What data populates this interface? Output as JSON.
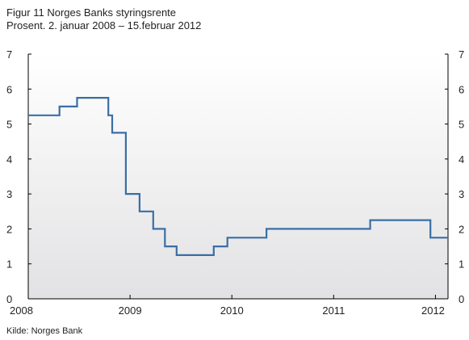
{
  "title": "Figur 11 Norges Banks styringsrente",
  "subtitle": "Prosent. 2. januar 2008 – 15.februar 2012",
  "source": "Kilde: Norges Bank",
  "colors": {
    "line": "#3a6ea5",
    "axis": "#000000",
    "gradient_top": "#ffffff",
    "gradient_bottom": "#e2e2e4"
  },
  "chart_data": {
    "type": "line",
    "step": true,
    "title": "Figur 11 Norges Banks styringsrente",
    "subtitle": "Prosent. 2. januar 2008 – 15.februar 2012",
    "xlabel": "",
    "ylabel": "",
    "xlim": [
      "2008-01-02",
      "2012-02-15"
    ],
    "ylim": [
      0,
      7
    ],
    "y_ticks_left": [
      "0",
      "1",
      "2",
      "3",
      "4",
      "5",
      "6",
      "7"
    ],
    "y_ticks_right": [
      "0",
      "1",
      "2",
      "3",
      "4",
      "5",
      "6",
      "7"
    ],
    "x_ticks": [
      "2008",
      "2009",
      "2010",
      "2011",
      "2012"
    ],
    "grid": false,
    "legend": "none",
    "series": [
      {
        "points": [
          {
            "x": "2008-01-02",
            "y": 5.25
          },
          {
            "x": "2008-04-23",
            "y": 5.5
          },
          {
            "x": "2008-06-25",
            "y": 5.75
          },
          {
            "x": "2008-10-15",
            "y": 5.25
          },
          {
            "x": "2008-10-29",
            "y": 4.75
          },
          {
            "x": "2008-12-17",
            "y": 3.0
          },
          {
            "x": "2009-02-04",
            "y": 2.5
          },
          {
            "x": "2009-03-25",
            "y": 2.0
          },
          {
            "x": "2009-05-06",
            "y": 1.5
          },
          {
            "x": "2009-06-17",
            "y": 1.25
          },
          {
            "x": "2009-10-28",
            "y": 1.5
          },
          {
            "x": "2009-12-16",
            "y": 1.75
          },
          {
            "x": "2010-05-05",
            "y": 2.0
          },
          {
            "x": "2011-05-12",
            "y": 2.25
          },
          {
            "x": "2011-12-14",
            "y": 1.75
          },
          {
            "x": "2012-02-15",
            "y": 1.75
          }
        ]
      }
    ]
  }
}
